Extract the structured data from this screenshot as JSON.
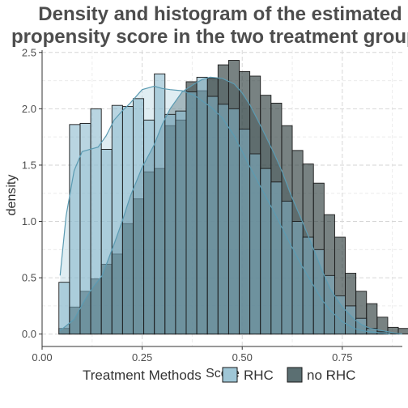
{
  "chart_data": {
    "type": "histogram",
    "title_line1": "Density and histogram of the estimated",
    "title_line2": "propensity score in the two treatment groups",
    "xlabel": "Score",
    "ylabel": "density",
    "xlim": [
      0.0,
      0.9
    ],
    "ylim": [
      0.0,
      2.5
    ],
    "x_ticks": [
      "0.00",
      "0.25",
      "0.50",
      "0.75"
    ],
    "x_tick_values": [
      0.0,
      0.25,
      0.5,
      0.75
    ],
    "y_ticks": [
      "0.0",
      "0.5",
      "1.0",
      "1.5",
      "2.0",
      "2.5"
    ],
    "y_tick_values": [
      0.0,
      0.5,
      1.0,
      1.5,
      2.0,
      2.5
    ],
    "grid": true,
    "bin_edges_start": 0.042,
    "bin_width": 0.0265,
    "legend": {
      "title": "Treatment Methods",
      "position": "bottom",
      "items": [
        "RHC",
        "no RHC"
      ]
    },
    "colors": {
      "rhc_fill": "#7fb3c8",
      "norhc_fill": "#2f3f3f",
      "rhc_density_fill": "#b8d6e2",
      "norhc_density_fill": "#5f7a80",
      "outline": "#1a1a1a",
      "density_line": "#5b9bb2"
    },
    "series": [
      {
        "name": "RHC",
        "histogram": [
          0.46,
          1.86,
          1.87,
          2.0,
          1.64,
          2.03,
          2.02,
          2.09,
          1.9,
          2.31,
          1.95,
          1.98,
          2.15,
          2.28,
          2.11,
          2.04,
          2.0,
          1.82,
          1.6,
          1.47,
          1.35,
          1.18,
          1.0,
          0.86,
          0.75,
          0.52,
          0.34,
          0.25,
          0.14,
          0.05,
          0.02,
          0.0,
          0.0
        ],
        "density_x": [
          0.045,
          0.06,
          0.08,
          0.1,
          0.12,
          0.14,
          0.16,
          0.18,
          0.2,
          0.22,
          0.25,
          0.28,
          0.3,
          0.32,
          0.35,
          0.38,
          0.4,
          0.42,
          0.45,
          0.48,
          0.5,
          0.52,
          0.55,
          0.58,
          0.6,
          0.62,
          0.65,
          0.68,
          0.7,
          0.72,
          0.75,
          0.78,
          0.8,
          0.82,
          0.85,
          0.87
        ],
        "density_y": [
          0.52,
          1.05,
          1.45,
          1.62,
          1.64,
          1.66,
          1.76,
          1.9,
          1.98,
          2.05,
          2.17,
          2.2,
          2.18,
          2.17,
          2.16,
          2.12,
          2.07,
          2.02,
          1.92,
          1.76,
          1.62,
          1.48,
          1.28,
          1.08,
          0.94,
          0.8,
          0.6,
          0.42,
          0.3,
          0.21,
          0.11,
          0.05,
          0.03,
          0.02,
          0.01,
          0.0
        ]
      },
      {
        "name": "no RHC",
        "histogram": [
          0.05,
          0.24,
          0.38,
          0.49,
          0.62,
          0.71,
          0.98,
          1.2,
          1.44,
          1.47,
          1.85,
          1.9,
          2.24,
          2.16,
          2.27,
          2.39,
          2.43,
          2.33,
          2.29,
          2.12,
          2.05,
          1.85,
          1.63,
          1.51,
          1.34,
          1.06,
          0.86,
          0.54,
          0.38,
          0.27,
          0.15,
          0.06,
          0.05,
          0.05,
          0.01
        ],
        "density_x": [
          0.045,
          0.08,
          0.1,
          0.12,
          0.15,
          0.18,
          0.2,
          0.22,
          0.25,
          0.28,
          0.3,
          0.32,
          0.35,
          0.38,
          0.4,
          0.42,
          0.45,
          0.48,
          0.5,
          0.52,
          0.55,
          0.58,
          0.6,
          0.62,
          0.65,
          0.68,
          0.7,
          0.72,
          0.75,
          0.78,
          0.8,
          0.82,
          0.85,
          0.88,
          0.9
        ],
        "density_y": [
          0.03,
          0.13,
          0.26,
          0.38,
          0.52,
          0.8,
          1.0,
          1.22,
          1.48,
          1.68,
          1.86,
          2.0,
          2.15,
          2.22,
          2.26,
          2.28,
          2.27,
          2.22,
          2.14,
          2.03,
          1.82,
          1.6,
          1.44,
          1.25,
          1.0,
          0.74,
          0.56,
          0.4,
          0.24,
          0.13,
          0.08,
          0.05,
          0.03,
          0.01,
          0.0
        ]
      }
    ]
  }
}
